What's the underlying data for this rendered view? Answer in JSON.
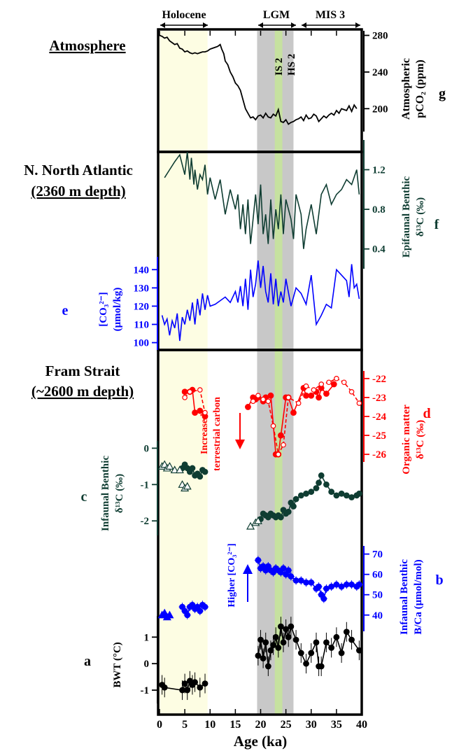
{
  "chart_data": {
    "type": "line",
    "xlabel": "Age (ka)",
    "xlim": [
      0,
      40
    ],
    "xticks": [
      "0",
      "5",
      "10",
      "15",
      "20",
      "25",
      "30",
      "35",
      "40"
    ],
    "intervals": {
      "holocene": {
        "label": "Holocene",
        "range": [
          0,
          9.5
        ],
        "color": "#fdfde3"
      },
      "lgm": {
        "label": "LGM",
        "range": [
          19.3,
          26.5
        ],
        "color": "#c8c8c8"
      },
      "mis3": {
        "label": "MIS 3",
        "range": [
          28,
          40
        ]
      },
      "is2": {
        "label": "IS 2",
        "range": [
          22.8,
          24.3
        ],
        "color": "#c6e1a0"
      },
      "hs2": {
        "label": "HS 2"
      }
    },
    "section_labels": {
      "atmosphere": "Atmosphere",
      "nna_line1": "N. North Atlantic",
      "nna_line2": "(2360 m depth)",
      "fram_line1": "Fram Strait",
      "fram_line2": "(~2600 m depth)"
    },
    "panels": {
      "g": {
        "letter": "g",
        "ylabel_line1": "Atmospheric",
        "ylabel_line2": "pCO₂ (ppm)",
        "ylim": [
          175,
          285
        ],
        "yticks": [
          "200",
          "240",
          "280"
        ],
        "color": "#000000",
        "series": [
          {
            "name": "pCO2",
            "x": [
              0,
              0.5,
              1,
              1.5,
              2,
              2.5,
              3,
              3.5,
              4,
              4.5,
              5,
              5.5,
              6,
              6.5,
              7,
              7.5,
              8,
              8.5,
              9,
              9.5,
              10,
              10.5,
              11,
              11.5,
              12,
              12.3,
              12.7,
              13,
              13.5,
              14,
              14.5,
              15,
              15.5,
              16,
              16.5,
              17,
              17.5,
              18,
              18.5,
              19,
              19.5,
              20,
              20.5,
              21,
              21.5,
              22,
              22.5,
              23,
              23.5,
              24,
              24.5,
              25,
              25.5,
              26,
              26.5,
              27,
              27.5,
              28,
              28.5,
              29,
              29.5,
              30,
              30.5,
              31,
              31.5,
              32,
              32.5,
              33,
              33.5,
              34,
              34.5,
              35,
              35.5,
              36,
              36.5,
              37,
              37.5,
              38,
              38.5,
              39
            ],
            "y": [
              280,
              279,
              277,
              278,
              274,
              272,
              270,
              271,
              266,
              265,
              262,
              263,
              261,
              260,
              261,
              260,
              261,
              262,
              262,
              263,
              265,
              266,
              267,
              268,
              270,
              265,
              260,
              252,
              248,
              240,
              235,
              228,
              225,
              220,
              210,
              200,
              195,
              190,
              191,
              188,
              192,
              193,
              190,
              195,
              191,
              190,
              194,
              192,
              199,
              186,
              185,
              188,
              183,
              185,
              186,
              188,
              189,
              191,
              187,
              193,
              189,
              190,
              194,
              192,
              186,
              189,
              192,
              190,
              193,
              195,
              193,
              198,
              195,
              200,
              199,
              198,
              203,
              197,
              204,
              200
            ]
          }
        ]
      },
      "f": {
        "letter": "f",
        "ylabel_line1": "Epifaunal Benthic",
        "ylabel_line2": "δ¹³C (‰)",
        "ylim": [
          0.2,
          1.5
        ],
        "yticks": [
          "0.4",
          "0.8",
          "1.2"
        ],
        "color": "#0f3d32",
        "series": [
          {
            "name": "epifaunal d13C",
            "x": [
              1,
              2,
              3,
              4,
              4.5,
              5,
              5.5,
              6,
              6.3,
              6.8,
              7,
              7.5,
              8,
              8.5,
              9,
              9.5,
              10,
              11,
              12,
              13,
              14,
              15,
              15.5,
              16,
              16.5,
              17,
              17.5,
              18,
              18.5,
              19,
              19.5,
              20,
              20.5,
              21,
              21.5,
              22,
              22.5,
              23,
              23.5,
              24,
              24.5,
              25,
              26,
              26.5,
              27,
              28,
              28.5,
              29,
              30,
              31,
              32,
              33,
              34,
              35,
              36,
              37,
              38,
              39,
              39.5
            ],
            "y": [
              1.12,
              1.2,
              1.28,
              1.35,
              1.25,
              1.15,
              1.38,
              1.1,
              1.32,
              1.05,
              1.2,
              1.0,
              1.15,
              1.1,
              1.25,
              0.95,
              1.12,
              0.9,
              1.1,
              0.75,
              1.0,
              0.8,
              0.95,
              0.6,
              0.85,
              0.55,
              0.9,
              0.45,
              0.7,
              0.95,
              0.65,
              1.05,
              0.55,
              0.75,
              0.45,
              0.9,
              0.5,
              0.8,
              0.6,
              0.95,
              0.55,
              0.9,
              0.7,
              0.5,
              0.95,
              0.75,
              0.4,
              0.6,
              0.85,
              0.55,
              0.95,
              1.05,
              0.85,
              0.95,
              1.0,
              1.1,
              1.05,
              1.2,
              0.95
            ]
          }
        ]
      },
      "e": {
        "letter": "e",
        "ylabel_line1": "[CO₃²⁻]",
        "ylabel_line2": "(μmol/kg)",
        "ylim": [
          96,
          147
        ],
        "yticks": [
          "100",
          "110",
          "120",
          "130",
          "140"
        ],
        "color": "#0000ff",
        "series": [
          {
            "name": "carbonate ion",
            "x": [
              0.5,
              1,
              1.5,
              2,
              2.5,
              3,
              3.5,
              4,
              4.5,
              5,
              5.5,
              6,
              6.5,
              7,
              7.5,
              8,
              8.5,
              9,
              9.5,
              10,
              11,
              12,
              13,
              14,
              15,
              15.5,
              16,
              16.5,
              17,
              17.5,
              18,
              18.5,
              19,
              19.5,
              20,
              20.5,
              21,
              21.5,
              22,
              22.5,
              23,
              23.5,
              24,
              24.5,
              25,
              26,
              27,
              28,
              29,
              30,
              31,
              32,
              33,
              34,
              35,
              36,
              37,
              37.5,
              38,
              38.5,
              39,
              39.5
            ],
            "y": [
              115,
              110,
              113,
              104,
              112,
              108,
              116,
              101,
              114,
              110,
              118,
              112,
              122,
              110,
              124,
              115,
              127,
              118,
              126,
              120,
              121,
              123,
              125,
              122,
              128,
              122,
              131,
              120,
              135,
              118,
              140,
              125,
              132,
              145,
              130,
              142,
              128,
              122,
              138,
              121,
              135,
              120,
              128,
              122,
              135,
              120,
              130,
              127,
              121,
              137,
              110,
              115,
              121,
              119,
              140,
              137,
              134,
              125,
              143,
              130,
              132,
              124
            ]
          }
        ]
      },
      "d": {
        "letter": "d",
        "ylabel_line1": "Organic matter",
        "ylabel_line2": "δ¹³C (‰)",
        "ylim": [
          -26.4,
          -21.6
        ],
        "yticks": [
          "-26",
          "-25",
          "-24",
          "-23",
          "-22"
        ],
        "color": "#ff0000",
        "arrow_label_line1": "Increased",
        "arrow_label_line2": "terrestrial carbon",
        "series": [
          {
            "name": "solid",
            "x": [
              5,
              6,
              6.5,
              7,
              8,
              9,
              17.5,
              18.5,
              19,
              19.5,
              20.5,
              21,
              22,
              23,
              23.5,
              24,
              25,
              25.5,
              26.5,
              28.5,
              29,
              30,
              31,
              31.5,
              32,
              33,
              34.5
            ],
            "y": [
              -22.7,
              -22.7,
              -22.6,
              -23.8,
              -23.7,
              -24.0,
              -23.5,
              -23.0,
              -23.1,
              -23.0,
              -23.2,
              -23.0,
              -22.9,
              -26.0,
              -26.0,
              -25.0,
              -23.0,
              -23.0,
              -23.8,
              -22.5,
              -22.9,
              -22.9,
              -22.7,
              -23.0,
              -22.5,
              -22.8,
              -22.3
            ]
          },
          {
            "name": "dashed",
            "x": [
              5,
              6,
              8,
              9,
              18.5,
              19.5,
              20.5,
              21.5,
              22.5,
              23.5,
              24.5,
              25.5,
              27.5,
              29,
              30.5,
              32,
              33.5,
              35,
              36.5,
              38,
              39.5
            ],
            "y": [
              -23.0,
              -22.7,
              -22.6,
              -23.8,
              -23.2,
              -22.9,
              -23.1,
              -23.2,
              -24.5,
              -26.0,
              -25.5,
              -23.0,
              -23.3,
              -22.4,
              -22.6,
              -22.3,
              -22.2,
              -22.0,
              -22.2,
              -22.7,
              -23.3
            ]
          }
        ]
      },
      "c": {
        "letter": "c",
        "ylabel_line1": "Infaunal Benthic",
        "ylabel_line2": "δ¹³C (‰)",
        "ylim": [
          -2.4,
          0.2
        ],
        "yticks": [
          "0",
          "-1",
          "-2"
        ],
        "color": "#0f3d32",
        "series": [
          {
            "name": "infaunal d13C",
            "x": [
              4.5,
              5,
              5.5,
              6,
              6.5,
              7,
              7.5,
              8,
              8.5,
              9,
              20,
              20.5,
              21,
              21.5,
              22,
              22.5,
              23,
              23.5,
              24,
              24.5,
              25,
              25.5,
              26,
              26.5,
              27,
              28,
              29,
              30,
              31,
              31.5,
              32,
              33,
              34,
              35,
              36,
              37,
              38,
              39,
              39.5
            ],
            "y": [
              -0.55,
              -0.45,
              -0.55,
              -0.65,
              -0.55,
              -0.75,
              -0.7,
              -0.78,
              -0.6,
              -0.65,
              -1.95,
              -1.8,
              -1.85,
              -1.9,
              -1.8,
              -1.85,
              -1.9,
              -1.85,
              -1.9,
              -1.7,
              -1.8,
              -1.75,
              -1.5,
              -1.6,
              -1.4,
              -1.3,
              -1.25,
              -1.2,
              -1.1,
              -0.95,
              -0.75,
              -1.0,
              -1.2,
              -1.3,
              -1.25,
              -1.3,
              -1.35,
              -1.3,
              -1.25
            ]
          }
        ],
        "triangles": {
          "x": [
            0.5,
            1,
            1.5,
            2,
            3,
            4,
            4.5,
            5,
            5.5,
            18,
            19,
            19.5
          ],
          "y": [
            -0.5,
            -0.45,
            -0.55,
            -0.5,
            -0.6,
            -0.6,
            -1.0,
            -1.1,
            -1.05,
            -2.15,
            -2.05,
            -2.0
          ]
        }
      },
      "b": {
        "letter": "b",
        "ylabel_line1": "Infaunal Benthic",
        "ylabel_line2": "B/Ca (μmol/mol)",
        "ylim": [
          32,
          74
        ],
        "yticks": [
          "40",
          "50",
          "60",
          "70"
        ],
        "color": "#0000ff",
        "arrow_label": "Higher [CO₃²⁻]",
        "series": [
          {
            "name": "infaunal B/Ca",
            "x": [
              4.5,
              5,
              5.5,
              6,
              6.5,
              7,
              7.5,
              8,
              8.5,
              9,
              19.5,
              20,
              20.5,
              21,
              21.5,
              22,
              22.5,
              23,
              23.5,
              24,
              24.5,
              25,
              25.5,
              26,
              27,
              28,
              29,
              30,
              31,
              31.5,
              32,
              32.5,
              33,
              34,
              35,
              36,
              37,
              38,
              39,
              39.5
            ],
            "y": [
              44,
              42,
              40,
              44,
              45,
              43,
              44,
              42,
              45,
              44,
              67,
              63,
              64,
              62,
              64,
              62,
              61,
              63,
              62,
              61,
              63,
              60,
              62,
              59,
              57,
              57,
              56,
              56,
              53,
              54,
              50,
              48,
              53,
              54,
              55,
              54,
              55,
              55,
              54,
              55
            ]
          }
        ],
        "triangles": {
          "x": [
            0.5,
            1,
            1.5,
            2
          ],
          "y": [
            40,
            41,
            39,
            40
          ]
        }
      },
      "a": {
        "letter": "a",
        "ylabel": "BWT (°C)",
        "ylim": [
          -1.5,
          1.8
        ],
        "yticks": [
          "1",
          "0",
          "-1"
        ],
        "color": "#000000",
        "series": [
          {
            "name": "BWT",
            "x": [
              0.5,
              1,
              4.5,
              5,
              5.5,
              6,
              6.5,
              7,
              8,
              9,
              19.5,
              20,
              20.5,
              21,
              21.5,
              22,
              22.5,
              23,
              23.5,
              24,
              24.5,
              25,
              25.5,
              26,
              27,
              28,
              29,
              30,
              31,
              31.5,
              32,
              33,
              34,
              35,
              36,
              37,
              38,
              39.5
            ],
            "y": [
              -0.8,
              -0.9,
              -1.0,
              -0.75,
              -1.0,
              -0.65,
              -0.8,
              -0.7,
              -0.9,
              -0.75,
              0.3,
              0.9,
              0.2,
              0.8,
              -0.1,
              0.5,
              0.7,
              1.0,
              0.6,
              1.4,
              0.8,
              1.3,
              1.0,
              1.4,
              0.9,
              0.4,
              0.0,
              0.4,
              0.8,
              -0.1,
              -0.1,
              0.8,
              0.6,
              1.0,
              0.4,
              1.2,
              0.9,
              0.5
            ]
          }
        ]
      }
    }
  }
}
